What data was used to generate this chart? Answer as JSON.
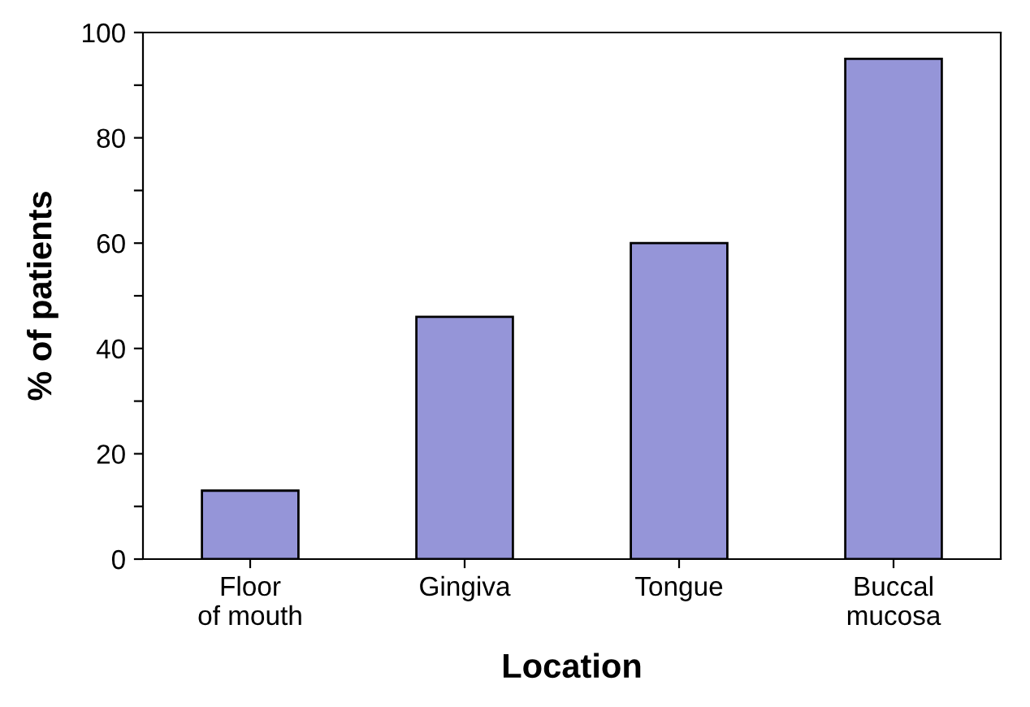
{
  "chart_data": {
    "type": "bar",
    "xlabel": "Location",
    "ylabel": "% of patients",
    "categories": [
      "Floor\nof mouth",
      "Gingiva",
      "Tongue",
      "Buccal\nmucosa"
    ],
    "values": [
      13,
      46,
      60,
      95
    ],
    "color": "#9595d8",
    "ylim": [
      0,
      100
    ],
    "yticks": [
      0,
      {
        "value": 10,
        "label": null
      },
      20,
      {
        "value": 30,
        "label": null
      },
      40,
      {
        "value": 50,
        "label": null
      },
      60,
      {
        "value": 70,
        "label": null
      },
      80,
      {
        "value": 90,
        "label": null
      },
      100
    ],
    "grid": false
  }
}
